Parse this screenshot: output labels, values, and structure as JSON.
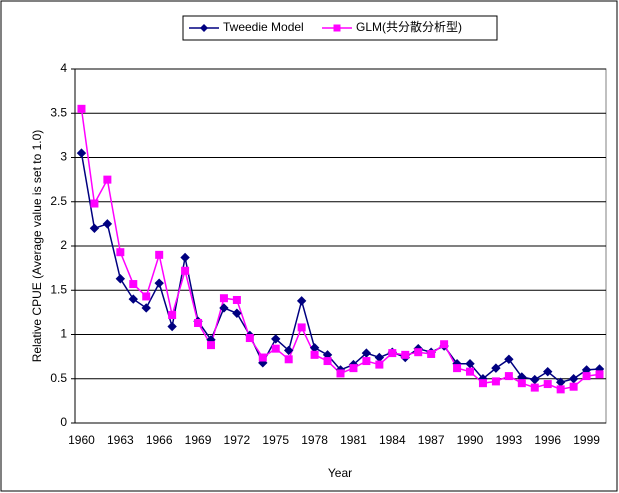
{
  "chart_data": {
    "type": "line",
    "categories": [
      "1960",
      null,
      null,
      "1963",
      null,
      null,
      "1966",
      null,
      null,
      "1969",
      null,
      null,
      "1972",
      null,
      null,
      "1975",
      null,
      null,
      "1978",
      null,
      null,
      "1981",
      null,
      null,
      "1984",
      null,
      null,
      "1987",
      null,
      null,
      "1990",
      null,
      null,
      "1993",
      null,
      null,
      "1996",
      null,
      null,
      "1999",
      null
    ],
    "series": [
      {
        "name": "Tweedie Model",
        "color": "#000080",
        "marker": "diamond",
        "values": [
          3.05,
          2.2,
          2.25,
          1.63,
          1.4,
          1.3,
          1.58,
          1.09,
          1.87,
          1.15,
          0.94,
          1.3,
          1.24,
          0.99,
          0.68,
          0.95,
          0.82,
          1.38,
          0.85,
          0.77,
          0.6,
          0.66,
          0.79,
          0.74,
          0.8,
          0.74,
          0.84,
          0.8,
          0.87,
          0.67,
          0.67,
          0.5,
          0.62,
          0.72,
          0.52,
          0.49,
          0.58,
          0.46,
          0.5,
          0.6,
          0.61
        ]
      },
      {
        "name": "GLM(共分散分析型)",
        "color": "#ff00ff",
        "marker": "square",
        "values": [
          3.55,
          2.48,
          2.75,
          1.93,
          1.57,
          1.43,
          1.9,
          1.22,
          1.72,
          1.13,
          0.88,
          1.41,
          1.39,
          0.96,
          0.74,
          0.84,
          0.72,
          1.08,
          0.77,
          0.7,
          0.56,
          0.62,
          0.7,
          0.66,
          0.79,
          0.77,
          0.8,
          0.78,
          0.89,
          0.62,
          0.58,
          0.45,
          0.47,
          0.53,
          0.45,
          0.4,
          0.44,
          0.38,
          0.41,
          0.53,
          0.55
        ]
      }
    ],
    "x_label": "Year",
    "y_label": "Relative CPUE (Average value is set to 1.0)",
    "ylim": [
      0,
      4
    ],
    "yticks": [
      0,
      0.5,
      1,
      1.5,
      2,
      2.5,
      3,
      3.5,
      4
    ],
    "grid": true,
    "legend": "top"
  }
}
